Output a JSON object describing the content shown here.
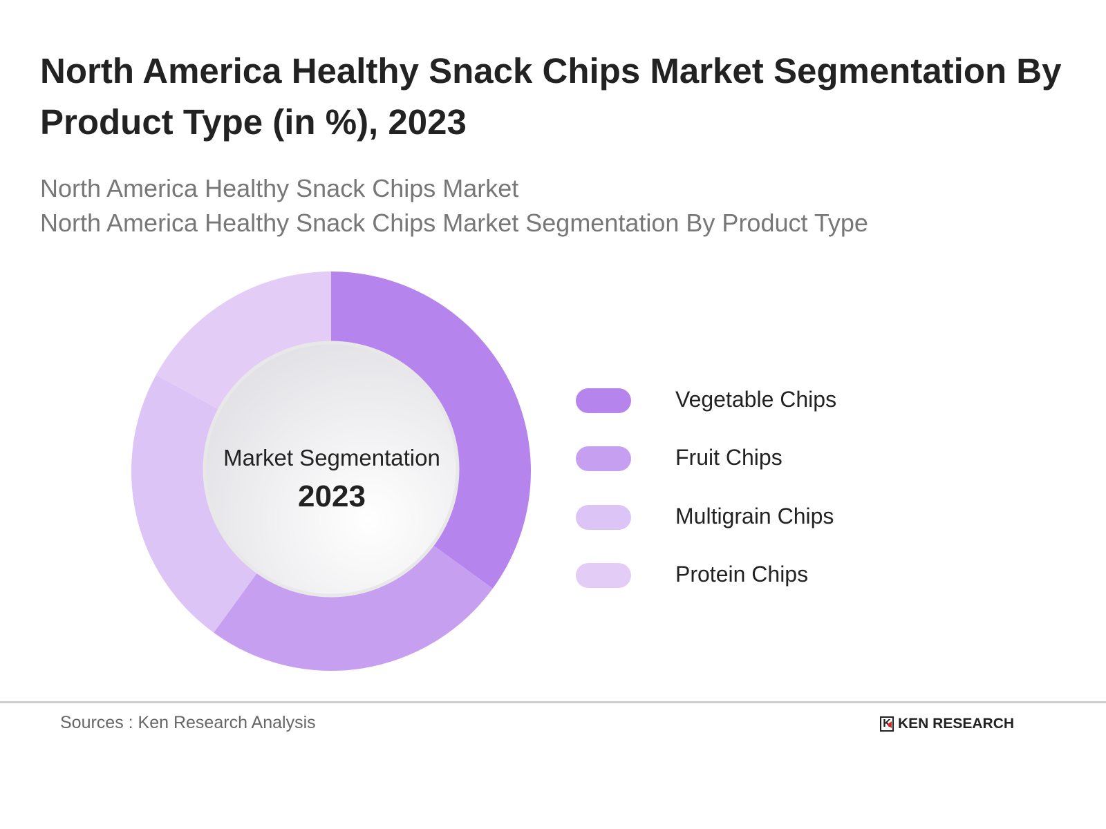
{
  "title": "North America Healthy Snack Chips Market Segmentation By Product Type (in %), 2023",
  "subtitle_1": "North America Healthy Snack Chips Market",
  "subtitle_2": "North America Healthy Snack Chips Market Segmentation By Product Type",
  "chart_data": {
    "type": "pie",
    "variant": "donut",
    "center_label": "Market Segmentation",
    "center_value": "2023",
    "categories": [
      "Vegetable Chips",
      "Fruit Chips",
      "Multigrain Chips",
      "Protein Chips"
    ],
    "values": [
      35,
      25,
      23,
      17
    ],
    "colors": [
      "#b584ec",
      "#c79ff0",
      "#dcc4f6",
      "#e3cdf7"
    ],
    "legend_position": "right",
    "data_labels_shown": false
  },
  "footer": {
    "source": "Sources : Ken Research Analysis",
    "logo_text": "KEN RESEARCH"
  }
}
